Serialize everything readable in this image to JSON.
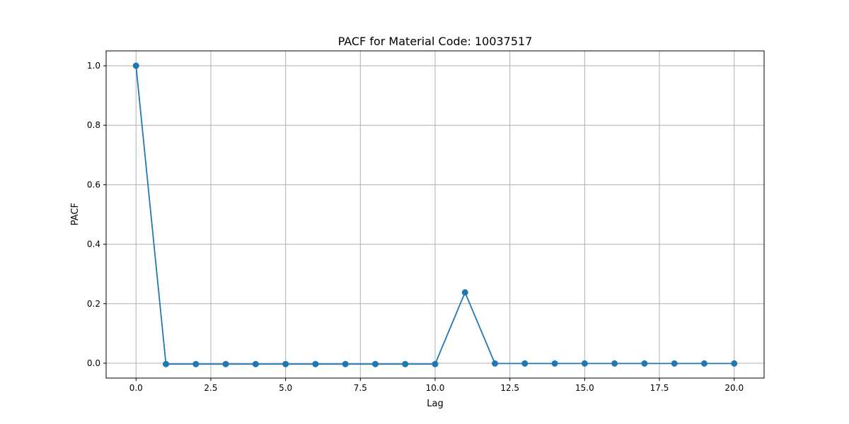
{
  "chart_data": {
    "type": "line",
    "title": "PACF for Material Code: 10037517",
    "xlabel": "Lag",
    "ylabel": "PACF",
    "xlim": [
      -1.0,
      21.0
    ],
    "ylim": [
      -0.05,
      1.05
    ],
    "grid": true,
    "x_ticks": [
      "0.0",
      "2.5",
      "5.0",
      "7.5",
      "10.0",
      "12.5",
      "15.0",
      "17.5",
      "20.0"
    ],
    "y_ticks": [
      "0.0",
      "0.2",
      "0.4",
      "0.6",
      "0.8",
      "1.0"
    ],
    "x": [
      0,
      1,
      2,
      3,
      4,
      5,
      6,
      7,
      8,
      9,
      10,
      11,
      12,
      13,
      14,
      15,
      16,
      17,
      18,
      19,
      20
    ],
    "series": [
      {
        "color": "#1f77b4",
        "marker": "circle",
        "values": [
          1.0,
          -0.003,
          -0.003,
          -0.003,
          -0.003,
          -0.003,
          -0.003,
          -0.003,
          -0.003,
          -0.003,
          -0.003,
          0.238,
          -0.001,
          -0.001,
          -0.001,
          -0.001,
          -0.001,
          -0.001,
          -0.001,
          -0.001,
          -0.001
        ]
      }
    ]
  }
}
